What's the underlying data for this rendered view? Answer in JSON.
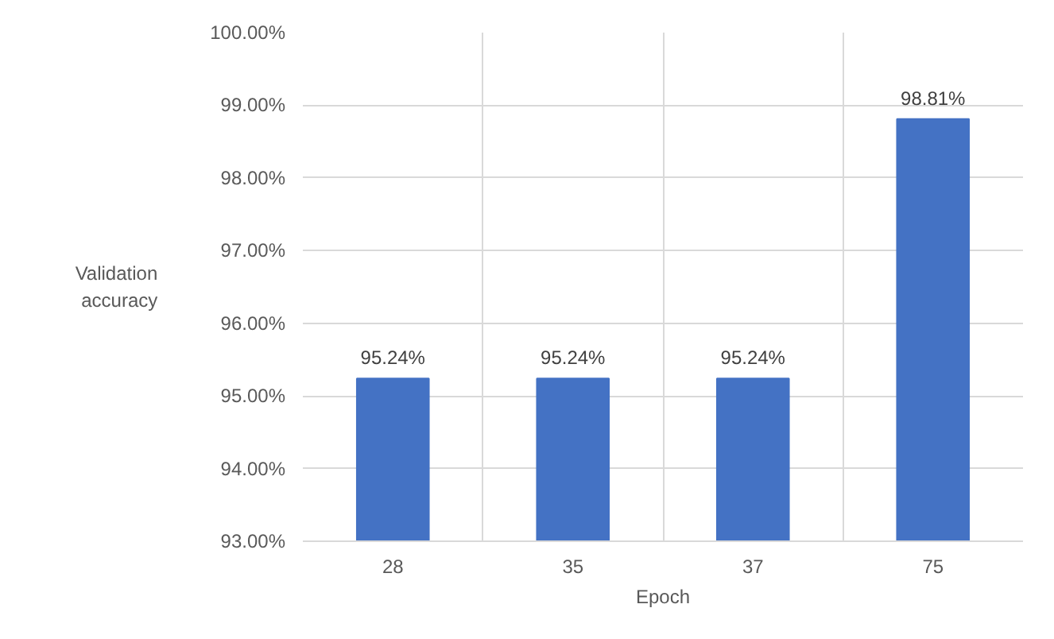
{
  "chart_data": {
    "type": "bar",
    "xlabel": "Epoch",
    "ylabel": "Validation\naccuracy",
    "categories": [
      "28",
      "35",
      "37",
      "75"
    ],
    "values": [
      95.24,
      95.24,
      95.24,
      98.81
    ],
    "value_labels": [
      "95.24%",
      "95.24%",
      "95.24%",
      "98.81%"
    ],
    "color": "#4472c4",
    "ylim": [
      93,
      100
    ],
    "yticks": [
      {
        "value": 93,
        "label": "93.00%"
      },
      {
        "value": 94,
        "label": "94.00%"
      },
      {
        "value": 95,
        "label": "95.00%"
      },
      {
        "value": 96,
        "label": "96.00%"
      },
      {
        "value": 97,
        "label": "97.00%"
      },
      {
        "value": 98,
        "label": "98.00%"
      },
      {
        "value": 99,
        "label": "99.00%"
      },
      {
        "value": 100,
        "label": "100.00%"
      }
    ],
    "grid": true
  }
}
